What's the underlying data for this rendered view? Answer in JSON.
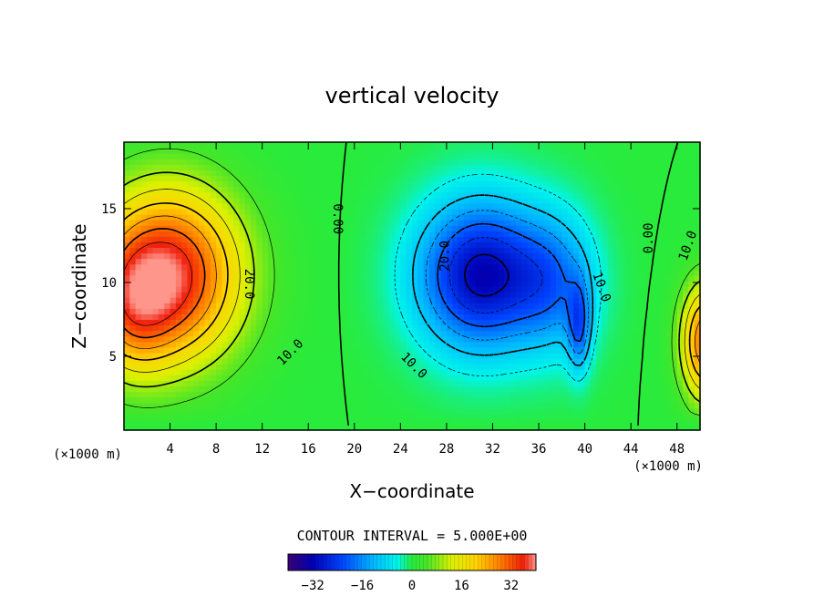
{
  "chart_data": {
    "type": "heatmap",
    "title": "vertical velocity",
    "xlabel": "X−coordinate",
    "ylabel": "Z−coordinate",
    "x_unit_left": "(×1000 m)",
    "x_unit_right": "(×1000 m)",
    "xlim": [
      0,
      50
    ],
    "ylim": [
      0,
      19.5
    ],
    "x_ticks": [
      4,
      8,
      12,
      16,
      20,
      24,
      28,
      32,
      36,
      40,
      44,
      48
    ],
    "y_ticks": [
      5,
      10,
      15
    ],
    "contour_interval_text": "CONTOUR INTERVAL = 5.000E+00",
    "colorbar": {
      "range": [
        -40,
        40
      ],
      "ticks": [
        -32,
        -16,
        0,
        16,
        32
      ],
      "tick_labels": [
        "−32",
        "−16",
        "0",
        "16",
        "32"
      ]
    },
    "contour_labels": [
      {
        "text": "20.0",
        "x": 10.9,
        "z": 9.9,
        "rotate": 90
      },
      {
        "text": "10.0",
        "x": 14.4,
        "z": 5.3,
        "rotate": -45
      },
      {
        "text": "0.00",
        "x": 18.6,
        "z": 14.3,
        "rotate": 90
      },
      {
        "text": "20.0",
        "x": 27.8,
        "z": 11.8,
        "rotate": -90
      },
      {
        "text": "10.0",
        "x": 25.2,
        "z": 4.4,
        "rotate": 45
      },
      {
        "text": "10.0",
        "x": 41.5,
        "z": 9.7,
        "rotate": 70
      },
      {
        "text": "0.00",
        "x": 45.5,
        "z": 13.0,
        "rotate": -90
      },
      {
        "text": "10.0",
        "x": 48.9,
        "z": 12.5,
        "rotate": -70
      }
    ],
    "features": [
      {
        "name": "updraft-left",
        "x": 3.8,
        "z": 10.5,
        "sx": 6.5,
        "sz": 6.0,
        "amp": 38
      },
      {
        "name": "updraft-left-base",
        "x": 0.5,
        "z": 8.0,
        "sx": 3.5,
        "sz": 4.5,
        "amp": 12
      },
      {
        "name": "downdraft-center",
        "x": 31.0,
        "z": 10.5,
        "sx": 5.5,
        "sz": 5.0,
        "amp": -32
      },
      {
        "name": "downdraft-center-east",
        "x": 37.5,
        "z": 10.0,
        "sx": 3.5,
        "sz": 4.5,
        "amp": -14
      },
      {
        "name": "downdraft-core",
        "x": 39.5,
        "z": 7.0,
        "sx": 1.0,
        "sz": 3.0,
        "amp": -16
      },
      {
        "name": "updraft-right",
        "x": 50.5,
        "z": 6.0,
        "sx": 2.2,
        "sz": 4.0,
        "amp": 30
      }
    ]
  }
}
